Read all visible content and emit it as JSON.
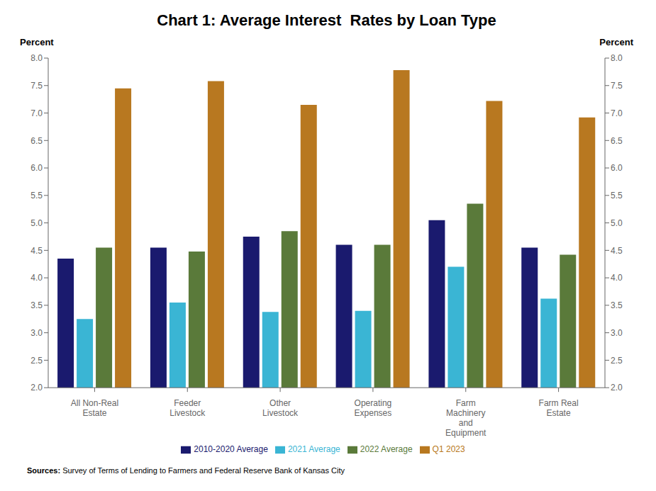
{
  "chart_data": {
    "type": "bar",
    "title": "Chart 1: Average Interest  Rates by Loan Type",
    "categories": [
      "All Non-Real\nEstate",
      "Feeder\nLivestock",
      "Other\nLivestock",
      "Operating\nExpenses",
      "Farm\nMachinery\nand\nEquipment",
      "Farm Real\nEstate"
    ],
    "series": [
      {
        "name": "2010-2020 Average",
        "color": "#1a1a6e",
        "values": [
          4.35,
          4.55,
          4.75,
          4.6,
          5.05,
          4.55
        ]
      },
      {
        "name": "2021 Average",
        "color": "#3ab5d4",
        "values": [
          3.25,
          3.55,
          3.38,
          3.4,
          4.2,
          3.62
        ]
      },
      {
        "name": "2022 Average",
        "color": "#5a7a3a",
        "values": [
          4.55,
          4.48,
          4.85,
          4.6,
          5.35,
          4.42
        ]
      },
      {
        "name": "Q1 2023",
        "color": "#b87820",
        "values": [
          7.45,
          7.58,
          7.15,
          7.78,
          7.22,
          6.92
        ]
      }
    ],
    "y_label": "Percent",
    "y2_label": "Percent",
    "ylim": [
      2.0,
      8.0
    ],
    "yticks": [
      {
        "value": 2,
        "label": "2.0"
      },
      2.5,
      {
        "value": 3,
        "label": "3.0"
      },
      3.5,
      {
        "value": 4,
        "label": "4.0"
      },
      4.5,
      {
        "value": 5,
        "label": "5.0"
      },
      5.5,
      {
        "value": 6,
        "label": "6.0"
      },
      6.5,
      {
        "value": 7,
        "label": "7.0"
      },
      7.5,
      {
        "value": 8,
        "label": "8.0"
      }
    ],
    "y2lim": [
      2.0,
      8.0
    ],
    "y2ticks": [
      {
        "value": 2,
        "label": "2.0"
      },
      2.5,
      {
        "value": 3,
        "label": "3.0"
      },
      3.5,
      {
        "value": 4,
        "label": "4.0"
      },
      4.5,
      {
        "value": 5,
        "label": "5.0"
      },
      5.5,
      {
        "value": 6,
        "label": "6.0"
      },
      6.5,
      {
        "value": 7,
        "label": "7.0"
      },
      7.5,
      {
        "value": 8,
        "label": "8.0"
      }
    ],
    "source": "Sources: Survey of Terms of Lending to Farmers and Federal Reserve Bank of Kansas City",
    "grid": false,
    "legend": "bottom"
  }
}
